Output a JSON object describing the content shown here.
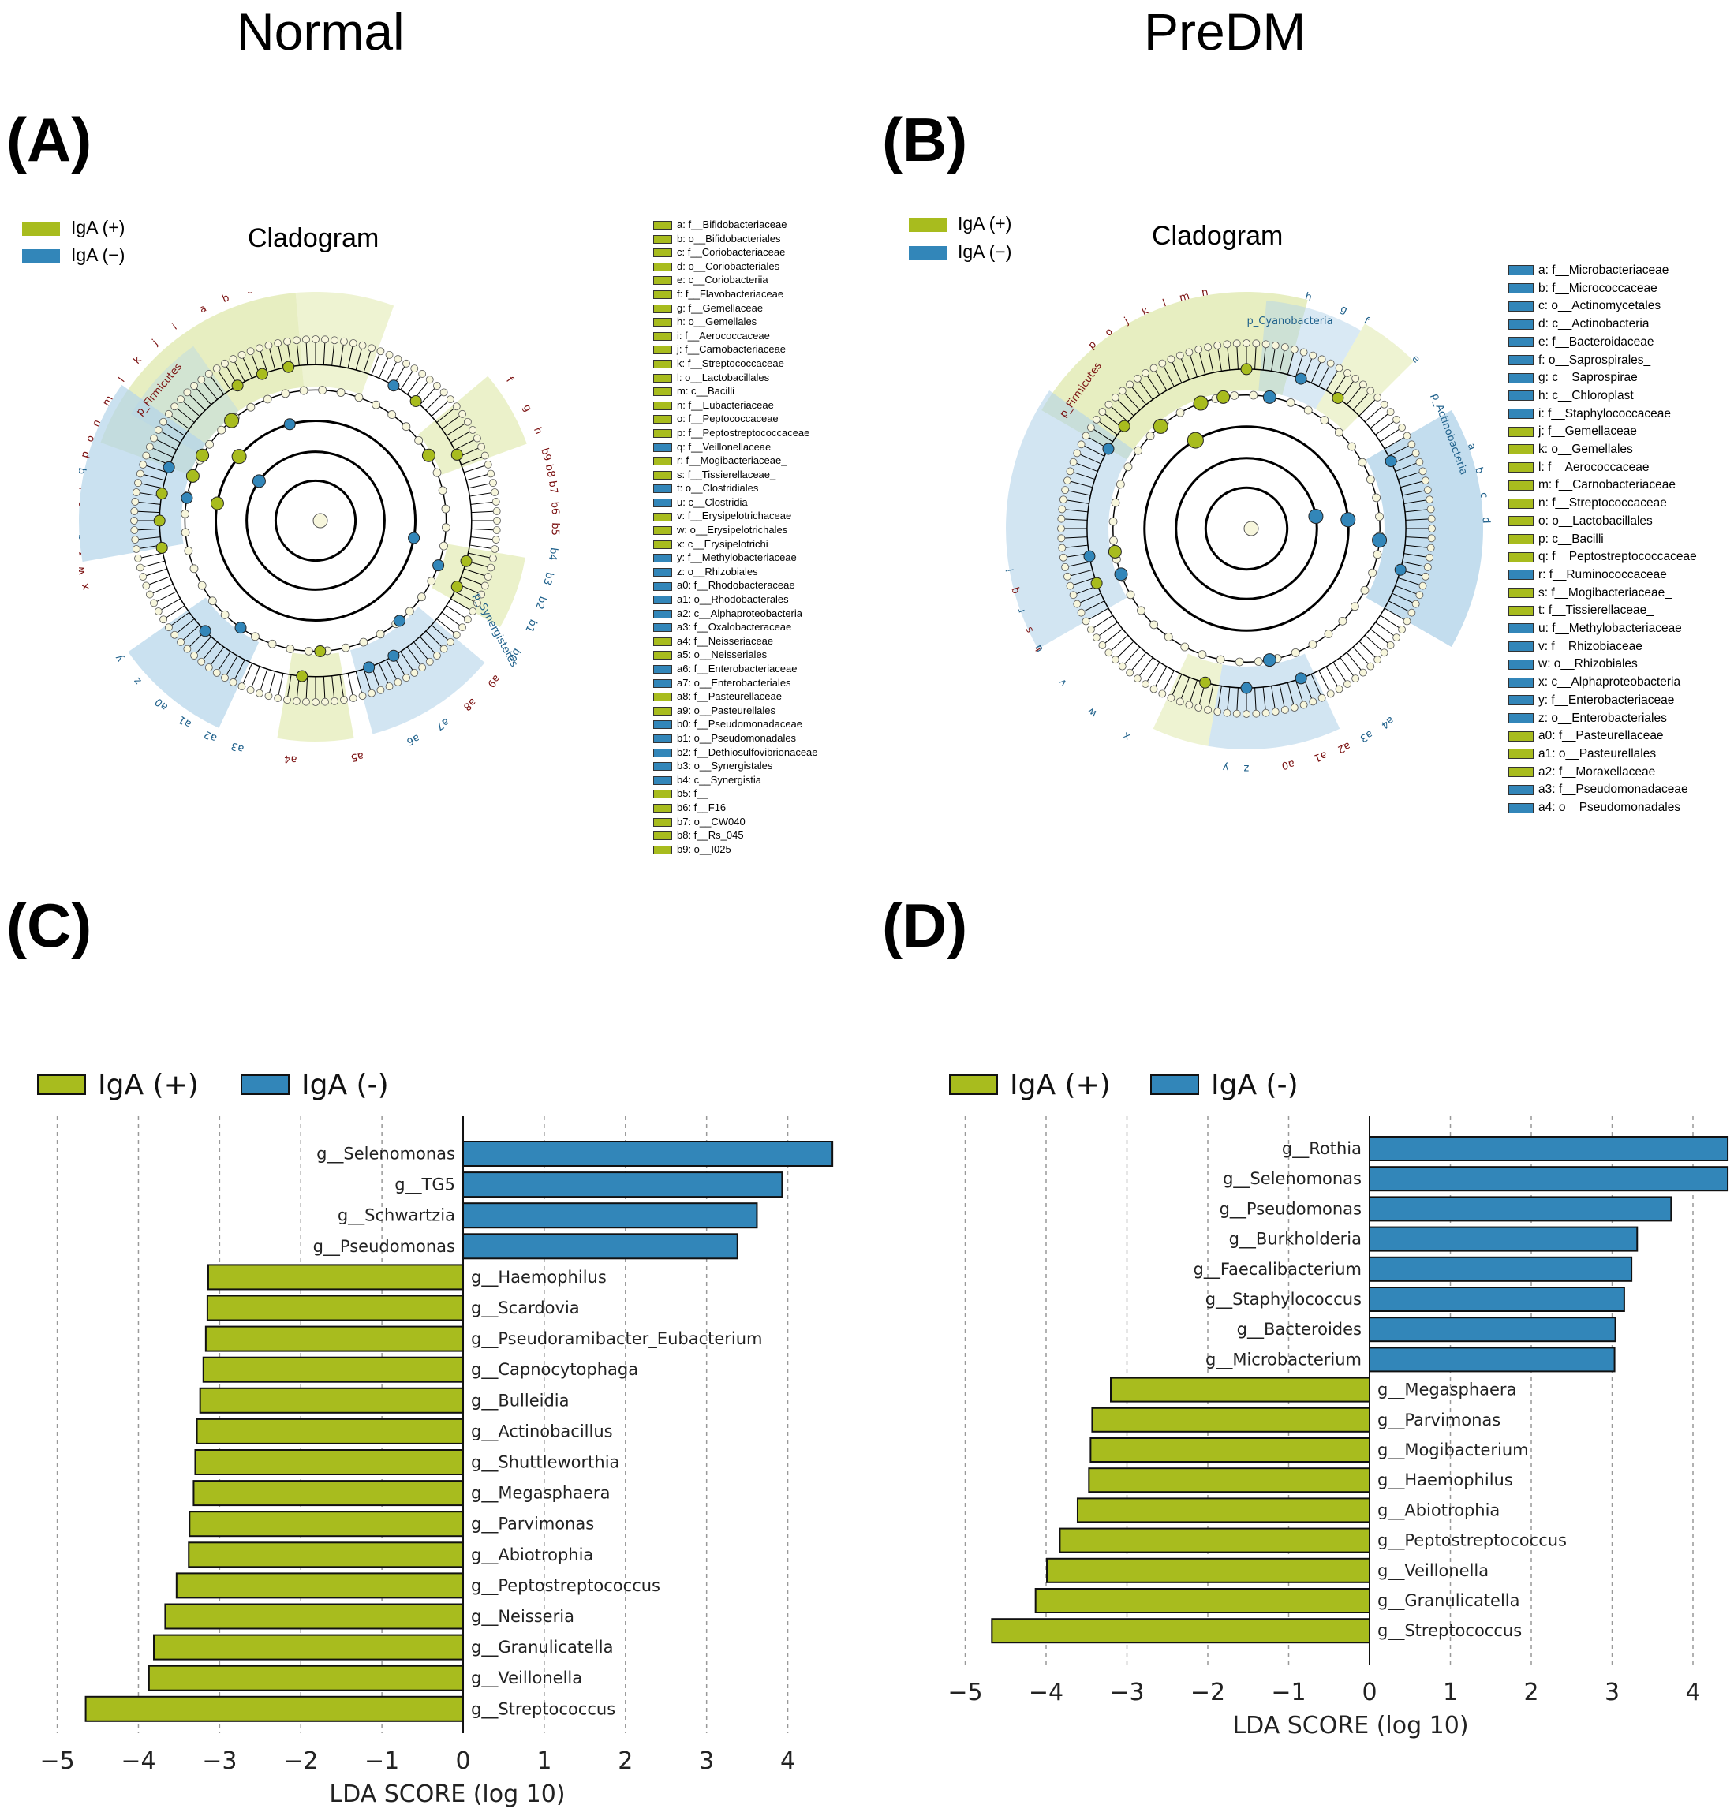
{
  "colors": {
    "pos": "#a8bc1e",
    "neg": "#3286b9",
    "clad_pos": "#dde7a6",
    "clad_neg": "#b4d4ea"
  },
  "groups": {
    "left": "Normal",
    "right": "PreDM"
  },
  "panels": {
    "a": "(A)",
    "b": "(B)",
    "c": "(C)",
    "d": "(D)"
  },
  "cladogram": {
    "title": "Cladogram",
    "legend_pos": "IgA (+)",
    "legend_neg": "IgA (−)",
    "A": {
      "phyla": [
        "p_Firmicutes",
        "p_Synergistetes"
      ],
      "keys": [
        {
          "label": "a: f__Bifidobacteriaceae",
          "g": "pos"
        },
        {
          "label": "b: o__Bifidobacteriales",
          "g": "pos"
        },
        {
          "label": "c: f__Coriobacteriaceae",
          "g": "pos"
        },
        {
          "label": "d: o__Coriobacteriales",
          "g": "pos"
        },
        {
          "label": "e: c__Coriobacteriia",
          "g": "pos"
        },
        {
          "label": "f: f__Flavobacteriaceae",
          "g": "pos"
        },
        {
          "label": "g: f__Gemellaceae",
          "g": "pos"
        },
        {
          "label": "h: o__Gemellales",
          "g": "pos"
        },
        {
          "label": "i: f__Aerococcaceae",
          "g": "pos"
        },
        {
          "label": "j: f__Carnobacteriaceae",
          "g": "pos"
        },
        {
          "label": "k: f__Streptococcaceae",
          "g": "pos"
        },
        {
          "label": "l: o__Lactobacillales",
          "g": "pos"
        },
        {
          "label": "m: c__Bacilli",
          "g": "pos"
        },
        {
          "label": "n: f__Eubacteriaceae",
          "g": "pos"
        },
        {
          "label": "o: f__Peptococcaceae",
          "g": "pos"
        },
        {
          "label": "p: f__Peptostreptococcaceae",
          "g": "pos"
        },
        {
          "label": "q: f__Veillonellaceae",
          "g": "neg"
        },
        {
          "label": "r: f__Mogibacteriaceae_",
          "g": "pos"
        },
        {
          "label": "s: f__Tissierellaceae_",
          "g": "pos"
        },
        {
          "label": "t: o__Clostridiales",
          "g": "neg"
        },
        {
          "label": "u: c__Clostridia",
          "g": "neg"
        },
        {
          "label": "v: f__Erysipelotrichaceae",
          "g": "pos"
        },
        {
          "label": "w: o__Erysipelotrichales",
          "g": "pos"
        },
        {
          "label": "x: c__Erysipelotrichi",
          "g": "pos"
        },
        {
          "label": "y: f__Methylobacteriaceae",
          "g": "neg"
        },
        {
          "label": "z: o__Rhizobiales",
          "g": "neg"
        },
        {
          "label": "a0: f__Rhodobacteraceae",
          "g": "neg"
        },
        {
          "label": "a1: o__Rhodobacterales",
          "g": "neg"
        },
        {
          "label": "a2: c__Alphaproteobacteria",
          "g": "neg"
        },
        {
          "label": "a3: f__Oxalobacteraceae",
          "g": "neg"
        },
        {
          "label": "a4: f__Neisseriaceae",
          "g": "pos"
        },
        {
          "label": "a5: o__Neisseriales",
          "g": "pos"
        },
        {
          "label": "a6: f__Enterobacteriaceae",
          "g": "neg"
        },
        {
          "label": "a7: o__Enterobacteriales",
          "g": "neg"
        },
        {
          "label": "a8: f__Pasteurellaceae",
          "g": "pos"
        },
        {
          "label": "a9: o__Pasteurellales",
          "g": "pos"
        },
        {
          "label": "b0: f__Pseudomonadaceae",
          "g": "neg"
        },
        {
          "label": "b1: o__Pseudomonadales",
          "g": "neg"
        },
        {
          "label": "b2: f__Dethiosulfovibrionaceae",
          "g": "neg"
        },
        {
          "label": "b3: o__Synergistales",
          "g": "neg"
        },
        {
          "label": "b4: c__Synergistia",
          "g": "neg"
        },
        {
          "label": "b5: f__",
          "g": "pos"
        },
        {
          "label": "b6: f__F16",
          "g": "pos"
        },
        {
          "label": "b7: o__CW040",
          "g": "pos"
        },
        {
          "label": "b8: f__Rs_045",
          "g": "pos"
        },
        {
          "label": "b9: o__I025",
          "g": "pos"
        }
      ]
    },
    "B": {
      "phyla": [
        "p_Firmicutes",
        "p_Cyanobacteria",
        "p_Actinobacteria"
      ],
      "keys": [
        {
          "label": "a: f__Microbacteriaceae",
          "g": "neg"
        },
        {
          "label": "b: f__Micrococcaceae",
          "g": "neg"
        },
        {
          "label": "c: o__Actinomycetales",
          "g": "neg"
        },
        {
          "label": "d: c__Actinobacteria",
          "g": "neg"
        },
        {
          "label": "e: f__Bacteroidaceae",
          "g": "neg"
        },
        {
          "label": "f: o__Saprospirales_",
          "g": "neg"
        },
        {
          "label": "g: c__Saprospirae_",
          "g": "neg"
        },
        {
          "label": "h: c__Chloroplast",
          "g": "neg"
        },
        {
          "label": "i: f__Staphylococcaceae",
          "g": "neg"
        },
        {
          "label": "j: f__Gemellaceae",
          "g": "pos"
        },
        {
          "label": "k: o__Gemellales",
          "g": "pos"
        },
        {
          "label": "l: f__Aerococcaceae",
          "g": "pos"
        },
        {
          "label": "m: f__Carnobacteriaceae",
          "g": "pos"
        },
        {
          "label": "n: f__Streptococcaceae",
          "g": "pos"
        },
        {
          "label": "o: o__Lactobacillales",
          "g": "pos"
        },
        {
          "label": "p: c__Bacilli",
          "g": "pos"
        },
        {
          "label": "q: f__Peptostreptococcaceae",
          "g": "pos"
        },
        {
          "label": "r: f__Ruminococcaceae",
          "g": "neg"
        },
        {
          "label": "s: f__Mogibacteriaceae_",
          "g": "pos"
        },
        {
          "label": "t: f__Tissierellaceae_",
          "g": "pos"
        },
        {
          "label": "u: f__Methylobacteriaceae",
          "g": "neg"
        },
        {
          "label": "v: f__Rhizobiaceae",
          "g": "neg"
        },
        {
          "label": "w: o__Rhizobiales",
          "g": "neg"
        },
        {
          "label": "x: c__Alphaproteobacteria",
          "g": "neg"
        },
        {
          "label": "y: f__Enterobacteriaceae",
          "g": "neg"
        },
        {
          "label": "z: o__Enterobacteriales",
          "g": "neg"
        },
        {
          "label": "a0: f__Pasteurellaceae",
          "g": "pos"
        },
        {
          "label": "a1: o__Pasteurellales",
          "g": "pos"
        },
        {
          "label": "a2: f__Moraxellaceae",
          "g": "pos"
        },
        {
          "label": "a3: f__Pseudomonadaceae",
          "g": "neg"
        },
        {
          "label": "a4: o__Pseudomonadales",
          "g": "neg"
        }
      ]
    }
  },
  "chart_data": [
    {
      "id": "C",
      "type": "bar",
      "orientation": "horizontal",
      "xlabel": "LDA SCORE (log 10)",
      "xlim": [
        -5.2,
        4.5
      ],
      "xticks": [
        -5,
        -4,
        -3,
        -2,
        -1,
        0,
        1,
        2,
        3,
        4
      ],
      "xtick_labels": [
        "−5",
        "−4",
        "−3",
        "−2",
        "−1",
        "0",
        "1",
        "2",
        "3",
        "4"
      ],
      "legend": [
        {
          "name": "IgA (+)",
          "g": "pos"
        },
        {
          "name": "IgA (-)",
          "g": "neg"
        }
      ],
      "series": [
        {
          "name": "IgA (-)",
          "g": "neg",
          "categories": [
            "g__Selenomonas",
            "g__TG5",
            "g__Schwartzia",
            "g__Pseudomonas"
          ],
          "values": [
            4.55,
            3.93,
            3.62,
            3.38
          ]
        },
        {
          "name": "IgA (+)",
          "g": "pos",
          "categories": [
            "g__Haemophilus",
            "g__Scardovia",
            "g__Pseudoramibacter_Eubacterium",
            "g__Capnocytophaga",
            "g__Bulleidia",
            "g__Actinobacillus",
            "g__Shuttleworthia",
            "g__Megasphaera",
            "g__Parvimonas",
            "g__Abiotrophia",
            "g__Peptostreptococcus",
            "g__Neisseria",
            "g__Granulicatella",
            "g__Veillonella",
            "g__Streptococcus"
          ],
          "values": [
            -3.14,
            -3.15,
            -3.17,
            -3.2,
            -3.24,
            -3.28,
            -3.3,
            -3.32,
            -3.37,
            -3.38,
            -3.53,
            -3.67,
            -3.81,
            -3.87,
            -4.65
          ]
        }
      ]
    },
    {
      "id": "D",
      "type": "bar",
      "orientation": "horizontal",
      "xlabel": "LDA SCORE (log 10)",
      "xlim": [
        -5.2,
        4.4
      ],
      "xticks": [
        -5,
        -4,
        -3,
        -2,
        -1,
        0,
        1,
        2,
        3,
        4
      ],
      "xtick_labels": [
        "−5",
        "−4",
        "−3",
        "−2",
        "−1",
        "0",
        "1",
        "2",
        "3",
        "4"
      ],
      "legend": [
        {
          "name": "IgA (+)",
          "g": "pos"
        },
        {
          "name": "IgA (-)",
          "g": "neg"
        }
      ],
      "series": [
        {
          "name": "IgA (-)",
          "g": "neg",
          "categories": [
            "g__Rothia",
            "g__Selenomonas",
            "g__Pseudomonas",
            "g__Burkholderia",
            "g__Faecalibacterium",
            "g__Staphylococcus",
            "g__Bacteroides",
            "g__Microbacterium"
          ],
          "values": [
            4.43,
            4.43,
            3.73,
            3.31,
            3.24,
            3.15,
            3.04,
            3.03
          ]
        },
        {
          "name": "IgA (+)",
          "g": "pos",
          "categories": [
            "g__Megasphaera",
            "g__Parvimonas",
            "g__Mogibacterium",
            "g__Haemophilus",
            "g__Abiotrophia",
            "g__Peptostreptococcus",
            "g__Veillonella",
            "g__Granulicatella",
            "g__Streptococcus"
          ],
          "values": [
            -3.2,
            -3.43,
            -3.45,
            -3.47,
            -3.61,
            -3.83,
            -3.99,
            -4.13,
            -4.67
          ]
        }
      ]
    }
  ]
}
